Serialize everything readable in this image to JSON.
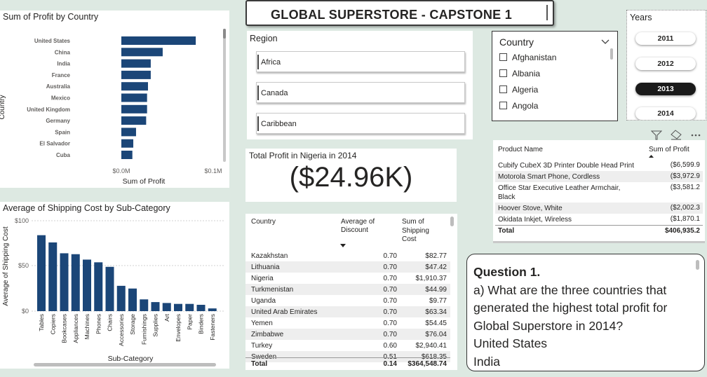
{
  "header": {
    "title": "GLOBAL SUPERSTORE - CAPSTONE 1"
  },
  "region_slicer": {
    "title": "Region",
    "items": [
      "Africa",
      "Canada",
      "Caribbean"
    ]
  },
  "country_slicer": {
    "title": "Country",
    "items": [
      "Afghanistan",
      "Albania",
      "Algeria",
      "Angola"
    ]
  },
  "years_slicer": {
    "title": "Years",
    "items": [
      "2011",
      "2012",
      "2013",
      "2014"
    ],
    "selected": "2013"
  },
  "nigeria_card": {
    "label": "Total Profit in Nigeria in 2014",
    "value": "($24.96K)"
  },
  "profit_chart": {
    "title": "Sum of Profit by Country",
    "xlabel": "Sum of Profit",
    "ylabel": "Country",
    "x_ticks": [
      "$0.0M",
      "$0.1M"
    ]
  },
  "shipping_chart": {
    "title": "Average of Shipping Cost by Sub-Category",
    "xlabel": "Sub-Category",
    "ylabel": "Average of Shipping Cost",
    "y_ticks": [
      "$100",
      "$50",
      "$0"
    ]
  },
  "chart_data": [
    {
      "type": "bar",
      "orientation": "horizontal",
      "title": "Sum of Profit by Country",
      "xlabel": "Sum of Profit",
      "ylabel": "Country",
      "categories": [
        "United States",
        "China",
        "India",
        "France",
        "Australia",
        "Mexico",
        "United Kingdom",
        "Germany",
        "Spain",
        "El Salvador",
        "Cuba"
      ],
      "values": [
        0.081,
        0.045,
        0.032,
        0.032,
        0.029,
        0.028,
        0.028,
        0.027,
        0.016,
        0.013,
        0.012
      ],
      "value_unit": "$M",
      "xlim": [
        0,
        0.1
      ],
      "color": "#1b4678"
    },
    {
      "type": "bar",
      "title": "Average of Shipping Cost by Sub-Category",
      "xlabel": "Sub-Category",
      "ylabel": "Average of Shipping Cost",
      "categories": [
        "Tables",
        "Copiers",
        "Bookcases",
        "Appliances",
        "Machines",
        "Phones",
        "Chairs",
        "Accessories",
        "Storage",
        "Furnishings",
        "Supplies",
        "Art",
        "Envelopes",
        "Paper",
        "Binders",
        "Fasteners"
      ],
      "values": [
        84,
        76,
        64,
        63,
        57,
        54,
        49,
        28,
        25,
        13,
        10,
        9,
        8,
        8,
        7,
        3
      ],
      "ylim": [
        0,
        100
      ],
      "color": "#1b4678"
    }
  ],
  "country_table": {
    "headers": [
      "Country",
      "Average of Discount",
      "Sum of Shipping Cost"
    ],
    "rows": [
      [
        "Kazakhstan",
        "0.70",
        "$82.77"
      ],
      [
        "Lithuania",
        "0.70",
        "$47.42"
      ],
      [
        "Nigeria",
        "0.70",
        "$1,910.37"
      ],
      [
        "Turkmenistan",
        "0.70",
        "$44.99"
      ],
      [
        "Uganda",
        "0.70",
        "$9.77"
      ],
      [
        "United Arab Emirates",
        "0.70",
        "$63.34"
      ],
      [
        "Yemen",
        "0.70",
        "$54.45"
      ],
      [
        "Zimbabwe",
        "0.70",
        "$76.04"
      ],
      [
        "Turkey",
        "0.60",
        "$2,940.41"
      ],
      [
        "Sweden",
        "0.51",
        "$618.35"
      ]
    ],
    "total": [
      "Total",
      "0.14",
      "$364,548.74"
    ]
  },
  "product_table": {
    "headers": [
      "Product Name",
      "Sum of Profit"
    ],
    "rows": [
      [
        "Cubify CubeX 3D Printer Double Head Print",
        "($6,599.9"
      ],
      [
        "Motorola Smart Phone, Cordless",
        "($3,972.9"
      ],
      [
        "Office Star Executive Leather Armchair, Black",
        "($3,581.2"
      ],
      [
        "Hoover Stove, White",
        "($2,002.3"
      ],
      [
        "Okidata Inkjet, Wireless",
        "($1,870.1"
      ]
    ],
    "total": [
      "Total",
      "$406,935.2"
    ]
  },
  "question": {
    "heading": "Question 1.",
    "text": "a) What are the three countries that generated the highest total profit for Global Superstore in 2014?",
    "answers": [
      "United States",
      "India"
    ]
  }
}
